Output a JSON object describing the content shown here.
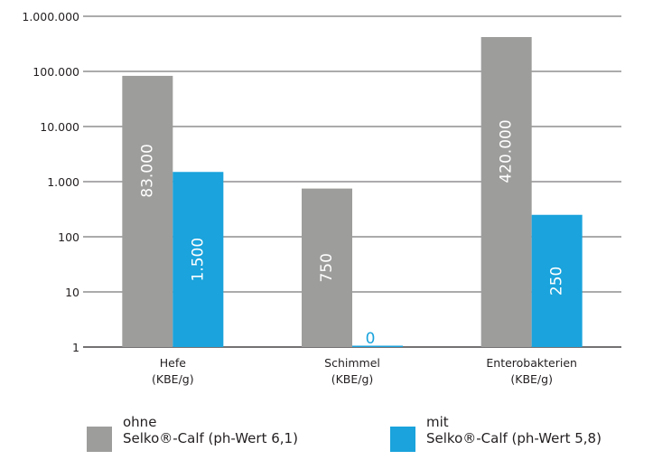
{
  "colors": {
    "ohne": "#9d9d9c",
    "mit": "#1aa3dc",
    "axis": "#231f20",
    "grid": "#231f20"
  },
  "chart_data": {
    "type": "bar",
    "scale": "log",
    "ylim": [
      1,
      1000000
    ],
    "yticks": [
      {
        "value": 1,
        "label": "1"
      },
      {
        "value": 10,
        "label": "10"
      },
      {
        "value": 100,
        "label": "100"
      },
      {
        "value": 1000,
        "label": "1.000"
      },
      {
        "value": 10000,
        "label": "10.000"
      },
      {
        "value": 100000,
        "label": "100.000"
      },
      {
        "value": 1000000,
        "label": "1.000.000"
      }
    ],
    "grid": true,
    "categories": [
      {
        "line1": "Hefe",
        "line2": "(KBE/g)"
      },
      {
        "line1": "Schimmel",
        "line2": "(KBE/g)"
      },
      {
        "line1": "Enterobakterien",
        "line2": "(KBE/g)"
      }
    ],
    "series": [
      {
        "key": "ohne",
        "values": [
          83000,
          750,
          420000
        ],
        "labels": [
          "83.000",
          "750",
          "420.000"
        ]
      },
      {
        "key": "mit",
        "values": [
          1500,
          0,
          250
        ],
        "labels": [
          "1.500",
          "0",
          "250"
        ]
      }
    ],
    "legend_position": "bottom"
  },
  "legend": {
    "ohne": {
      "line1": "ohne",
      "line2": "Selko®-Calf (ph-Wert 6,1)"
    },
    "mit": {
      "line1": "mit",
      "line2": "Selko®-Calf (ph-Wert 5,8)"
    }
  }
}
